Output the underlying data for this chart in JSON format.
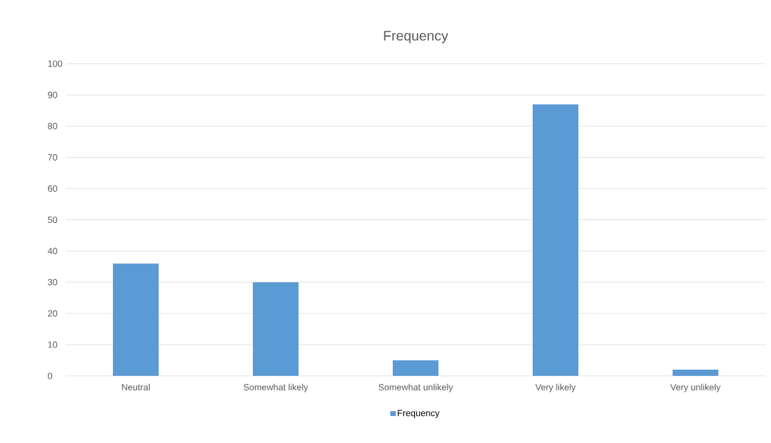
{
  "chart_data": {
    "type": "bar",
    "title": "Frequency",
    "categories": [
      "Neutral",
      "Somewhat likely",
      "Somewhat unlikely",
      "Very likely",
      "Very unlikely"
    ],
    "series": [
      {
        "name": "Frequency",
        "color": "#5b9bd5",
        "values": [
          36,
          30,
          5,
          87,
          2
        ]
      }
    ],
    "ylim": [
      0,
      100
    ],
    "yticks": [
      0,
      10,
      20,
      30,
      40,
      50,
      60,
      70,
      80,
      90,
      100
    ],
    "grid": "y",
    "legend": "bottom"
  }
}
